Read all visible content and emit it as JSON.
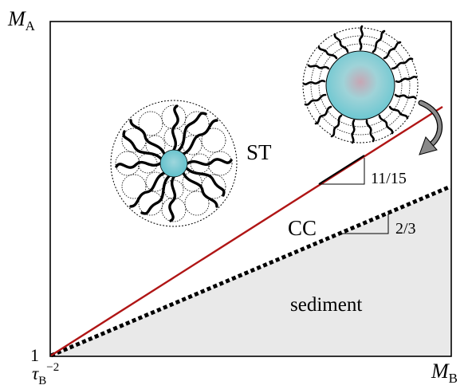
{
  "axes": {
    "y_label_main": "M",
    "y_label_sub": "A",
    "x_label_main": "M",
    "x_label_sub": "B",
    "origin_y_tick": "1",
    "origin_x_tick_main": "τ",
    "origin_x_tick_sub": "B",
    "origin_x_tick_sup": "−2"
  },
  "regions": {
    "st_label": "ST",
    "cc_label": "CC",
    "sediment_label": "sediment"
  },
  "slopes": {
    "st_slope_label": "11/15",
    "cc_slope_label": "2/3"
  },
  "colors": {
    "st_line": "#b01515",
    "cc_line": "#000000",
    "sediment_fill": "#e9e9e9",
    "core": "#7fd0d8"
  },
  "icons": {
    "micelle_small_core": "star-micelle-icon",
    "micelle_large_core": "crew-cut-micelle-icon",
    "transition_arrow": "curved-arrow-icon"
  }
}
